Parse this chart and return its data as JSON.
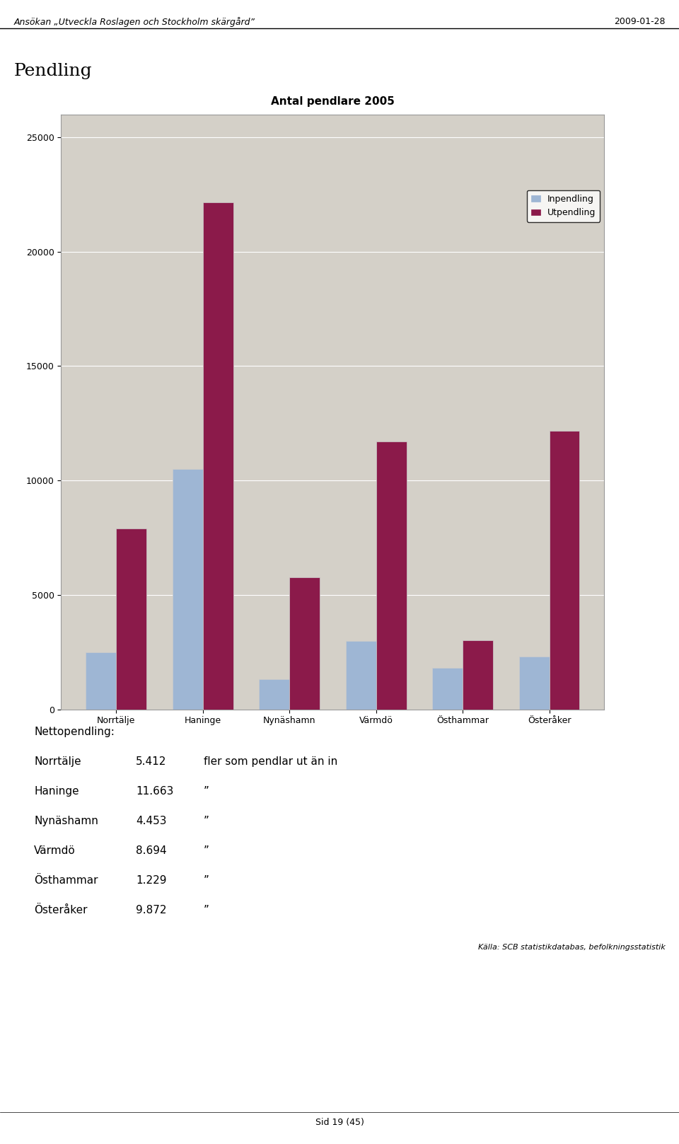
{
  "title": "Antal pendlare 2005",
  "categories": [
    "Norrtälje",
    "Haninge",
    "Nynäshamn",
    "Värmdö",
    "Östhammar",
    "Österåker"
  ],
  "inpendling": [
    2500,
    10500,
    1300,
    3000,
    1800,
    2300
  ],
  "utpendling": [
    7912,
    22163,
    5753,
    11694,
    3029,
    12172
  ],
  "inpendling_color": "#9eb6d4",
  "utpendling_color": "#8B1A4A",
  "legend_inpendling": "Inpendling",
  "legend_utpendling": "Utpendling",
  "ylim": [
    0,
    26000
  ],
  "yticks": [
    0,
    5000,
    10000,
    15000,
    20000,
    25000
  ],
  "chart_bg": "#d4d0c8",
  "header_text": "Ansökan „Utveckla Roslagen och Stockholm skärgård”",
  "date_text": "2009-01-28",
  "section_title": "Pendling",
  "netto_title": "Nettopendling:",
  "netto_items": [
    [
      "Norrtälje",
      "5.412",
      "fler som pendlar ut än in"
    ],
    [
      "Haninge",
      "11.663",
      "”"
    ],
    [
      "Nynäshamn",
      "4.453",
      "”"
    ],
    [
      "Värmdö",
      "8.694",
      "”"
    ],
    [
      "Östhammar",
      "1.229",
      "”"
    ],
    [
      "Österåker",
      "9.872",
      "”"
    ]
  ],
  "source_text": "Källa: SCB statistikdatabas, befolkningsstatistik",
  "footer_text": "Sid 19 (45)",
  "bar_width": 0.35
}
